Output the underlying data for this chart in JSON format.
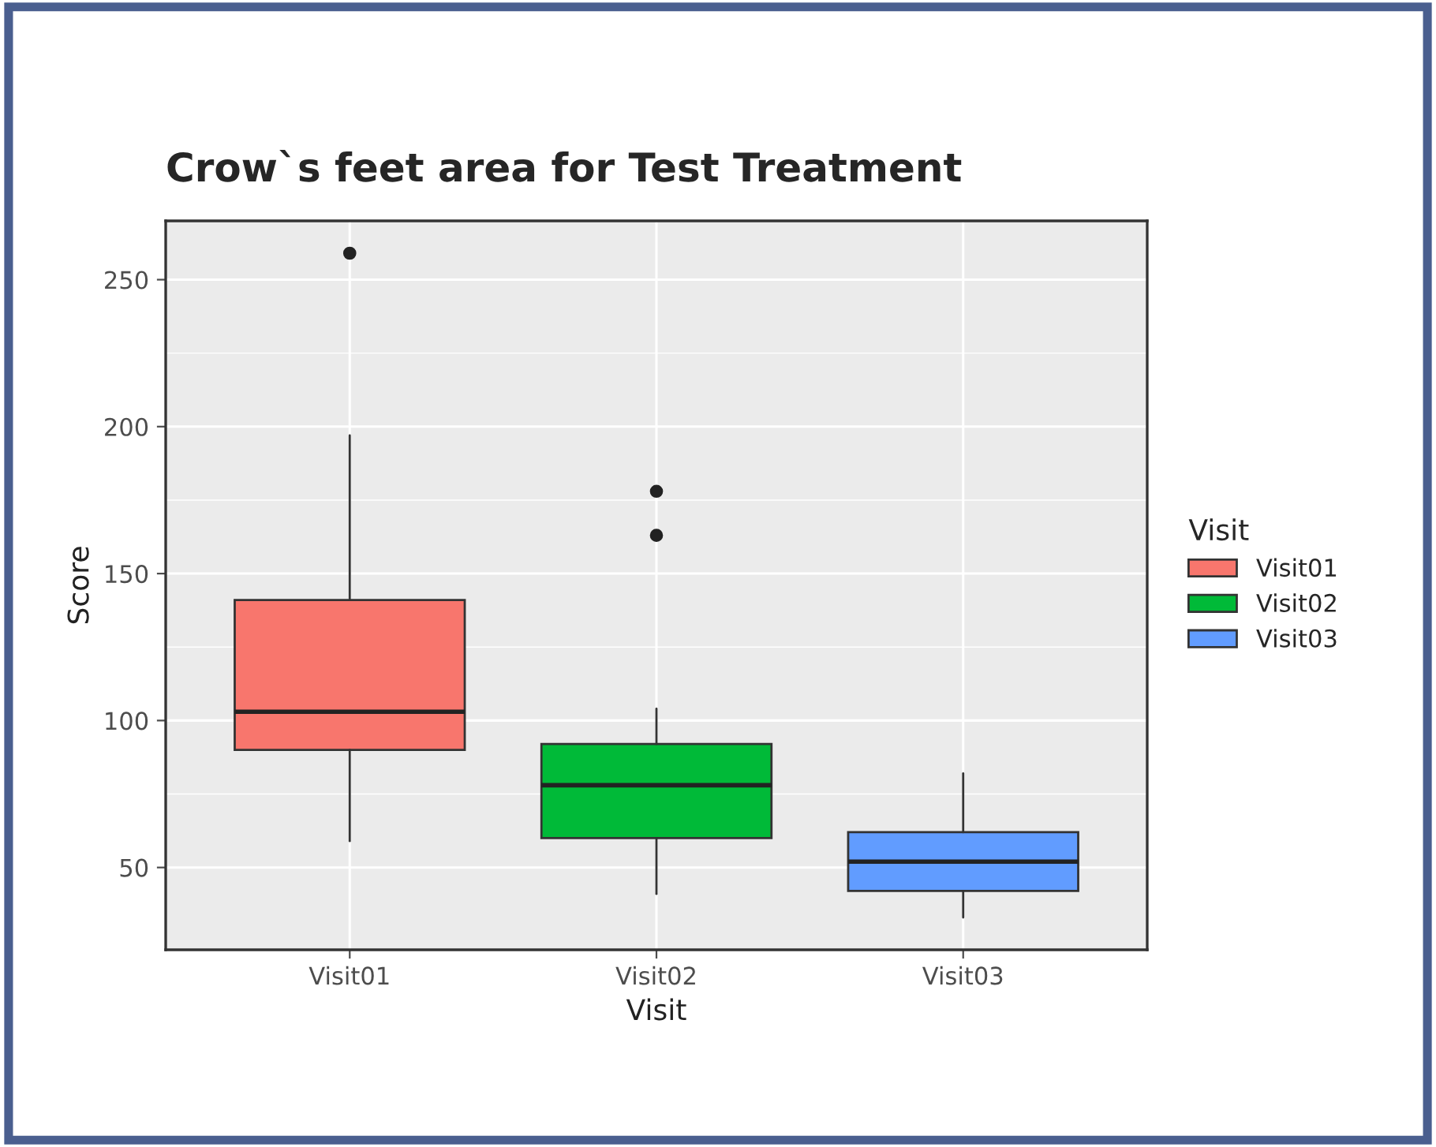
{
  "chart_data": {
    "type": "box",
    "title": "Crow`s feet area for Test Treatment",
    "xlabel": "Visit",
    "ylabel": "Score",
    "legend_title": "Visit",
    "categories": [
      "Visit01",
      "Visit02",
      "Visit03"
    ],
    "series": [
      {
        "name": "Visit01",
        "color": "#f8766d",
        "boxes": [
          {
            "low": 59,
            "q1": 90,
            "median": 103,
            "q3": 141,
            "high": 197,
            "outliers": [
              259
            ]
          },
          null,
          null
        ]
      },
      {
        "name": "Visit02",
        "color": "#00ba38",
        "boxes": [
          null,
          {
            "low": 41,
            "q1": 60,
            "median": 78,
            "q3": 92,
            "high": 104,
            "outliers": [
              163,
              178
            ]
          },
          null
        ]
      },
      {
        "name": "Visit03",
        "color": "#619cff",
        "boxes": [
          null,
          null,
          {
            "low": 33,
            "q1": 42,
            "median": 52,
            "q3": 62,
            "high": 82
          }
        ]
      }
    ],
    "ylim": [
      22,
      270
    ],
    "yticks": [
      50,
      100,
      150,
      200,
      250
    ],
    "grid": true,
    "legend": "right"
  }
}
